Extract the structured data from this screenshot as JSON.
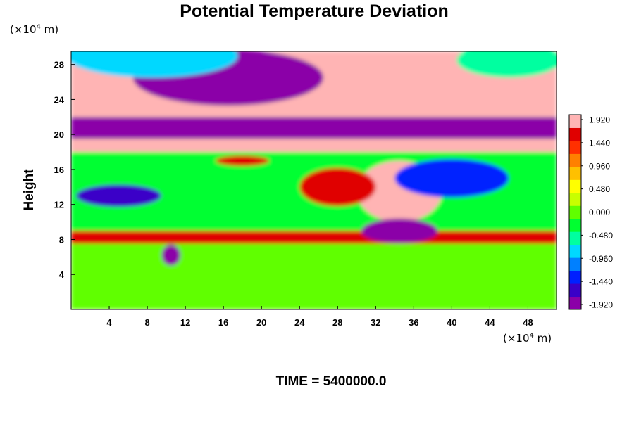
{
  "title": "Potential Temperature Deviation",
  "y_unit_prefix": "(×10",
  "y_unit_exp": "4",
  "y_unit_suffix": " m)",
  "x_unit_prefix": "(×10",
  "x_unit_exp": "4",
  "x_unit_suffix": " m)",
  "time_label": "TIME = 5400000.0",
  "chart_data": {
    "type": "heatmap",
    "title": "Potential Temperature Deviation",
    "xlabel": "",
    "ylabel": "Height",
    "xlim": [
      0,
      51
    ],
    "ylim": [
      0,
      29.5
    ],
    "x_ticks": [
      4,
      8,
      12,
      16,
      20,
      24,
      28,
      32,
      36,
      40,
      44,
      48
    ],
    "y_ticks": [
      4,
      8,
      12,
      16,
      20,
      24,
      28
    ],
    "colorbar": {
      "min": -1.92,
      "max": 1.92,
      "tick_labels": [
        "1.920",
        "1.440",
        "0.960",
        "0.480",
        "0.000",
        "-0.480",
        "-0.960",
        "-1.440",
        "-1.920"
      ],
      "colors": [
        "#8b00a8",
        "#3a00c8",
        "#0020ff",
        "#0080ff",
        "#00d8ff",
        "#00ffa0",
        "#00ff30",
        "#60ff00",
        "#c8ff00",
        "#ffff00",
        "#ffc000",
        "#ff8000",
        "#ff3000",
        "#e00000",
        "#ffb4b4"
      ]
    },
    "layers": [
      {
        "y_from": 0,
        "y_to": 7.5,
        "value": 0.1
      },
      {
        "y_from": 7.5,
        "y_to": 9,
        "value": 1.6
      },
      {
        "y_from": 9,
        "y_to": 18,
        "value": -0.3
      },
      {
        "y_from": 18,
        "y_to": 19.5,
        "value": 1.9
      },
      {
        "y_from": 19.5,
        "y_to": 22,
        "value": -1.9
      },
      {
        "y_from": 22,
        "y_to": 29.5,
        "value": 1.9
      }
    ],
    "features": [
      {
        "x": 16.5,
        "y": 26.5,
        "rx": 10,
        "ry": 3.2,
        "value": -1.92
      },
      {
        "x": 8.5,
        "y": 29,
        "rx": 9,
        "ry": 2.5,
        "value": -0.7
      },
      {
        "x": 46,
        "y": 28.5,
        "rx": 5.5,
        "ry": 2,
        "value": -0.5
      },
      {
        "x": 34.5,
        "y": 13.5,
        "rx": 4.5,
        "ry": 3.5,
        "value": 1.92
      },
      {
        "x": 28,
        "y": 14,
        "rx": 4,
        "ry": 2.2,
        "value": 1.6
      },
      {
        "x": 34.5,
        "y": 9,
        "rx": 4,
        "ry": 1.4,
        "value": -1.92
      },
      {
        "x": 10.5,
        "y": 6.2,
        "rx": 1,
        "ry": 1.2,
        "value": -1.92
      },
      {
        "x": 5,
        "y": 13,
        "rx": 4.5,
        "ry": 1.3,
        "value": -1.6
      },
      {
        "x": 40,
        "y": 15,
        "rx": 6,
        "ry": 2.2,
        "value": -1.3
      },
      {
        "x": 18,
        "y": 17,
        "rx": 2.8,
        "ry": 0.6,
        "value": 1.6
      }
    ]
  }
}
